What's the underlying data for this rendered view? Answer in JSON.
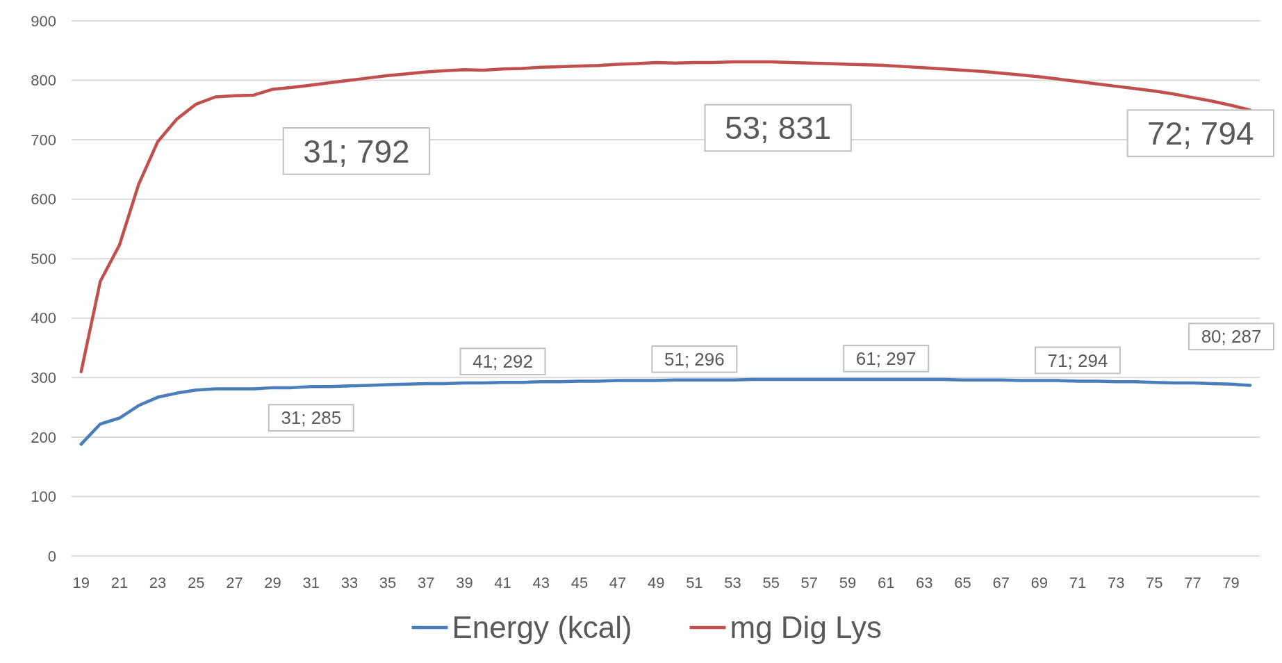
{
  "chart_data": {
    "type": "line",
    "categories": [
      "19",
      null,
      "21",
      null,
      "23",
      null,
      "25",
      null,
      "27",
      null,
      "29",
      null,
      "31",
      null,
      "33",
      null,
      "35",
      null,
      "37",
      null,
      "39",
      null,
      "41",
      null,
      "43",
      null,
      "45",
      null,
      "47",
      null,
      "49",
      null,
      "51",
      null,
      "53",
      null,
      "55",
      null,
      "57",
      null,
      "59",
      null,
      "61",
      null,
      "63",
      null,
      "65",
      null,
      "67",
      null,
      "69",
      null,
      "71",
      null,
      "73",
      null,
      "75",
      null,
      "77",
      null,
      "79",
      null
    ],
    "series": [
      {
        "name": "Energy (kcal)",
        "color": "#4a7ebb",
        "values": [
          188,
          222,
          232,
          253,
          267,
          274,
          279,
          281,
          281,
          281,
          283,
          283,
          285,
          285,
          286,
          287,
          288,
          289,
          290,
          290,
          291,
          291,
          292,
          292,
          293,
          293,
          294,
          294,
          295,
          295,
          295,
          296,
          296,
          296,
          296,
          297,
          297,
          297,
          297,
          297,
          297,
          297,
          297,
          297,
          297,
          297,
          296,
          296,
          296,
          295,
          295,
          295,
          294,
          294,
          293,
          293,
          292,
          291,
          291,
          290,
          289,
          287
        ]
      },
      {
        "name": "mg Dig Lys",
        "color": "#c0504d",
        "values": [
          310,
          462,
          523,
          625,
          697,
          735,
          760,
          772,
          774,
          775,
          785,
          788,
          792,
          796,
          800,
          804,
          808,
          811,
          814,
          816,
          818,
          817,
          819,
          820,
          822,
          823,
          824,
          825,
          827,
          828,
          830,
          829,
          830,
          830,
          831,
          831,
          831,
          830,
          829,
          828,
          827,
          826,
          825,
          823,
          821,
          819,
          817,
          815,
          812,
          809,
          806,
          802,
          798,
          794,
          790,
          786,
          782,
          777,
          771,
          765,
          758,
          750
        ]
      }
    ],
    "ylim": [
      0,
      900
    ],
    "yticks": [
      0,
      100,
      200,
      300,
      400,
      500,
      600,
      700,
      800,
      900
    ],
    "grid": "y",
    "legend": "bottom",
    "line_style": "solid",
    "marker": "none",
    "annotations": [
      {
        "text": "31; 792",
        "x": "31",
        "y": 792
      },
      {
        "text": "53; 831",
        "x": "53",
        "y": 831
      },
      "72; 794",
      {
        "text": "31; 285",
        "x": "31",
        "y": 285
      },
      {
        "text": "41; 292",
        "x": "41",
        "y": 292
      },
      {
        "text": "51; 296",
        "x": "51",
        "y": 296
      },
      {
        "text": "61; 297",
        "x": "61",
        "y": 297
      },
      {
        "text": "71; 294",
        "x": "71",
        "y": 294
      },
      "80; 287"
    ]
  }
}
